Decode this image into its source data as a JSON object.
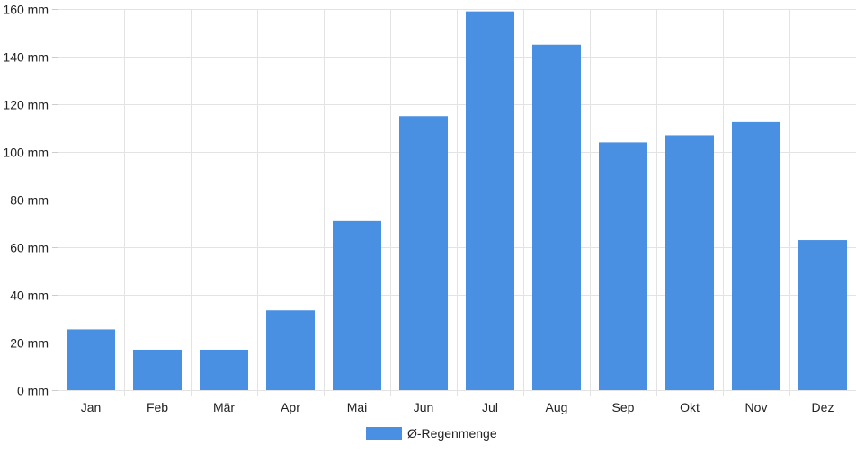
{
  "chart_data": {
    "type": "bar",
    "title": "",
    "xlabel": "",
    "ylabel": "",
    "y_unit": "mm",
    "ylim": [
      0,
      160
    ],
    "y_ticks": [
      0,
      20,
      40,
      60,
      80,
      100,
      120,
      140,
      160
    ],
    "y_tick_labels": [
      "0 mm",
      "20 mm",
      "40 mm",
      "60 mm",
      "80 mm",
      "100 mm",
      "120 mm",
      "140 mm",
      "160 mm"
    ],
    "categories": [
      "Jan",
      "Feb",
      "Mär",
      "Apr",
      "Mai",
      "Jun",
      "Jul",
      "Aug",
      "Sep",
      "Okt",
      "Nov",
      "Dez"
    ],
    "series": [
      {
        "name": "Ø-Regenmenge",
        "color": "#4a90e2",
        "values": [
          25.5,
          17,
          17,
          33.5,
          71,
          115,
          159,
          145,
          104,
          107,
          112.5,
          63
        ]
      }
    ],
    "grid": true,
    "legend_position": "bottom-center"
  }
}
